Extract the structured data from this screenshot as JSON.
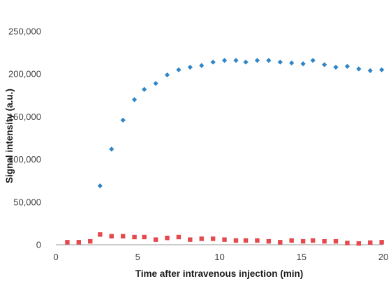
{
  "chart_data": {
    "type": "scatter",
    "title": "",
    "xlabel": "Time after intravenous injection (min)",
    "ylabel": "Signal intensity (a.u.)",
    "xlim": [
      0,
      20
    ],
    "ylim": [
      0,
      250000
    ],
    "xticks": [
      0,
      5,
      10,
      15,
      20
    ],
    "xtick_labels": [
      "0",
      "5",
      "10",
      "15",
      "20"
    ],
    "yticks": [
      0,
      50000,
      100000,
      150000,
      200000,
      250000
    ],
    "ytick_labels": [
      "0",
      "50,000",
      "100,000",
      "150,000",
      "200,000",
      "250,000"
    ],
    "grid": false,
    "legend": "none",
    "series": [
      {
        "color": "#2e86c8",
        "marker": "diamond",
        "x": [
          2.7,
          3.4,
          4.1,
          4.8,
          5.4,
          6.1,
          6.8,
          7.5,
          8.2,
          8.9,
          9.6,
          10.3,
          11.0,
          11.6,
          12.3,
          13.0,
          13.7,
          14.4,
          15.1,
          15.7,
          16.4,
          17.1,
          17.8,
          18.5,
          19.2,
          19.9
        ],
        "y": [
          69000,
          112000,
          146000,
          170000,
          182000,
          189000,
          199000,
          205000,
          208000,
          210000,
          214000,
          216000,
          216000,
          214000,
          216000,
          216000,
          214000,
          213000,
          212000,
          216000,
          211000,
          208000,
          209000,
          206000,
          204000,
          205000
        ]
      },
      {
        "color": "#e5484d",
        "marker": "square",
        "x": [
          0.7,
          1.4,
          2.1,
          2.7,
          3.4,
          4.1,
          4.8,
          5.4,
          6.1,
          6.8,
          7.5,
          8.2,
          8.9,
          9.6,
          10.3,
          11.0,
          11.6,
          12.3,
          13.0,
          13.7,
          14.4,
          15.1,
          15.7,
          16.4,
          17.1,
          17.8,
          18.5,
          19.2,
          19.9
        ],
        "y": [
          3000,
          3000,
          4000,
          12000,
          10000,
          10000,
          9000,
          9000,
          6000,
          8000,
          9000,
          6000,
          7000,
          7000,
          6000,
          5000,
          5000,
          5000,
          4000,
          3000,
          5000,
          4000,
          5000,
          4000,
          4000,
          2000,
          1500,
          2500,
          3000
        ]
      }
    ]
  }
}
